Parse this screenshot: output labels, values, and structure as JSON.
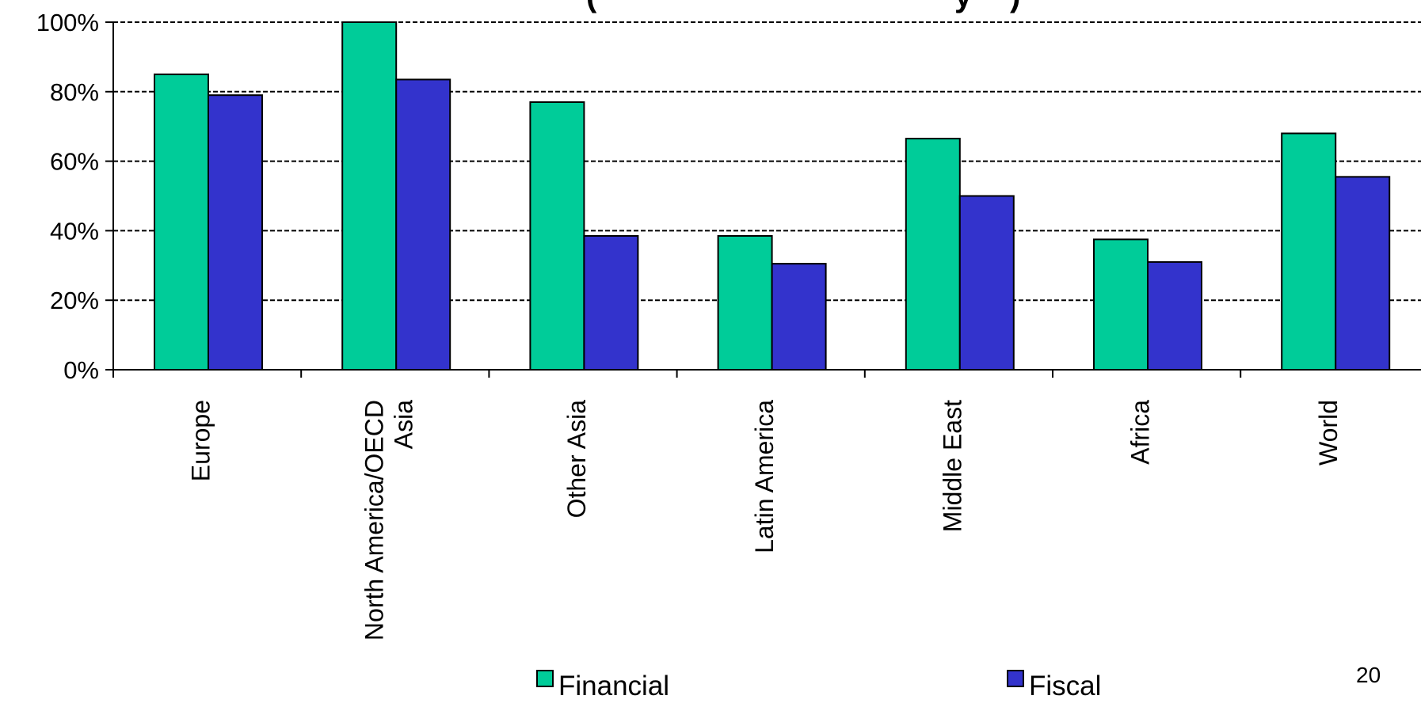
{
  "chart_data": {
    "type": "bar",
    "title_fragment": "(",
    "title_fragment_right": "y",
    "title_fragment_end": ")",
    "categories": [
      [
        "Europe"
      ],
      [
        "North America/OECD",
        "Asia"
      ],
      [
        "Other Asia"
      ],
      [
        "Latin America"
      ],
      [
        "Middle East"
      ],
      [
        "Africa"
      ],
      [
        "World"
      ]
    ],
    "series": [
      {
        "name": "Financial",
        "color": "#00cc99",
        "values": [
          85,
          100,
          77,
          38.5,
          66.5,
          37.5,
          68
        ]
      },
      {
        "name": "Fiscal",
        "color": "#3333cc",
        "values": [
          79,
          83.5,
          38.5,
          30.5,
          50,
          31,
          55.5
        ]
      }
    ],
    "ylim": [
      0,
      100
    ],
    "yticks": [
      0,
      20,
      40,
      60,
      80,
      100
    ],
    "ytick_labels": [
      "0%",
      "20%",
      "40%",
      "60%",
      "80%",
      "100%"
    ],
    "grid": "dashed horizontal",
    "legend_position": "bottom",
    "xlabel": "",
    "ylabel": ""
  },
  "page_number": "20"
}
